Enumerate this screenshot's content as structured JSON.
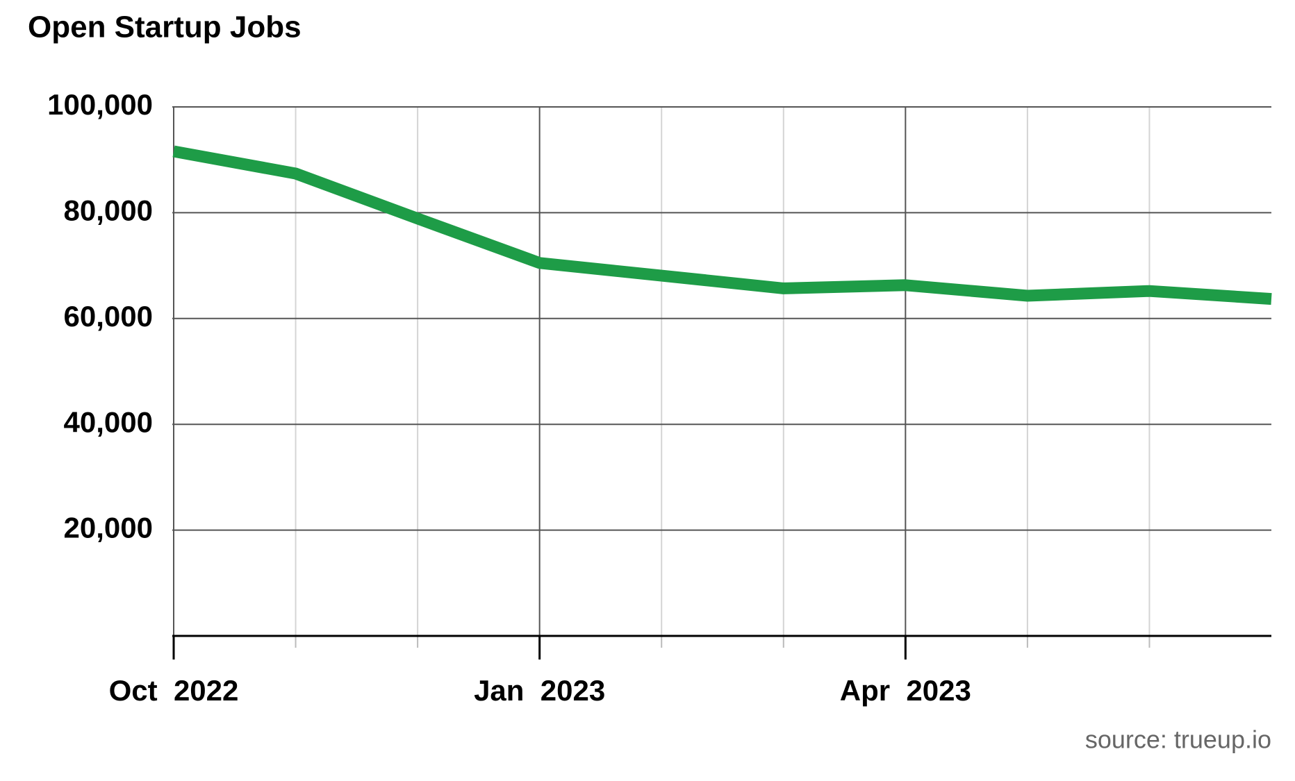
{
  "chart_data": {
    "type": "line",
    "title": "Open Startup Jobs",
    "source": "source: trueup.io",
    "x": [
      "2022-10",
      "2022-11",
      "2022-12",
      "2023-01",
      "2023-02",
      "2023-03",
      "2023-04",
      "2023-05",
      "2023-06",
      "2023-07"
    ],
    "series": [
      {
        "name": "Open Startup Jobs",
        "color": "#1e9c47",
        "values": [
          91600,
          87400,
          78900,
          70500,
          68100,
          65700,
          66300,
          64300,
          65200,
          63700
        ]
      }
    ],
    "xlim": [
      "2022-10",
      "2023-07"
    ],
    "xticks": [
      {
        "value": "2022-10",
        "label": "Oct  2022"
      },
      {
        "value": "2023-01",
        "label": "Jan  2023"
      },
      {
        "value": "2023-04",
        "label": "Apr  2023"
      }
    ],
    "x_minor_ticks": [
      "2022-11",
      "2022-12",
      "2023-02",
      "2023-03",
      "2023-05",
      "2023-06"
    ],
    "ylim": [
      0,
      100000
    ],
    "yticks": [
      {
        "value": 20000,
        "label": "20,000"
      },
      {
        "value": 40000,
        "label": "40,000"
      },
      {
        "value": 60000,
        "label": "60,000"
      },
      {
        "value": 80000,
        "label": "80,000"
      },
      {
        "value": 100000,
        "label": "100,000"
      }
    ],
    "grid": true
  }
}
